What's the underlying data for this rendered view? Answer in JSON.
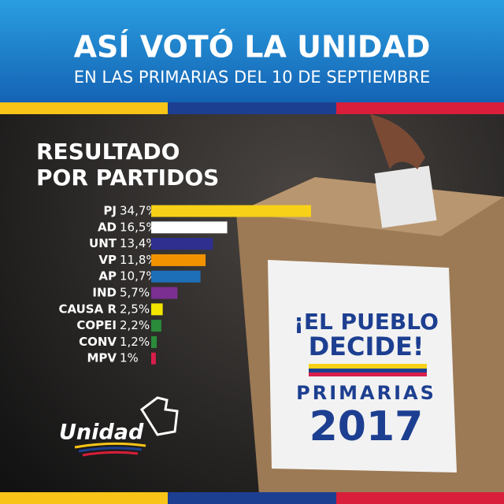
{
  "chart_data": {
    "type": "bar",
    "orientation": "horizontal",
    "title": "ASÍ VOTÓ LA UNIDAD",
    "subtitle": "EN LAS PRIMARIAS DEL 10 DE SEPTIEMBRE",
    "heading": [
      "RESULTADO",
      "POR PARTIDOS"
    ],
    "categories": [
      "PJ",
      "AD",
      "UNT",
      "VP",
      "AP",
      "IND",
      "CAUSA R",
      "COPEI",
      "CONV",
      "MPV"
    ],
    "values": [
      34.7,
      16.5,
      13.4,
      11.8,
      10.7,
      5.7,
      2.5,
      2.2,
      1.2,
      1
    ],
    "value_labels": [
      "34,7%",
      "16,5%",
      "13,4%",
      "11,8%",
      "10,7%",
      "5,7%",
      "2,5%",
      "2,2%",
      "1,2%",
      "1%"
    ],
    "colors": [
      "#f7d117",
      "#ffffff",
      "#2e2f8f",
      "#f39200",
      "#1d70b8",
      "#7b2f91",
      "#f2e600",
      "#2a8b3a",
      "#2a8b3a",
      "#d81e4a"
    ],
    "ballot_text": [
      "¡EL PUEBLO",
      "DECIDE!",
      "PRIMARIAS",
      "2017"
    ],
    "logo": "Unidad"
  }
}
